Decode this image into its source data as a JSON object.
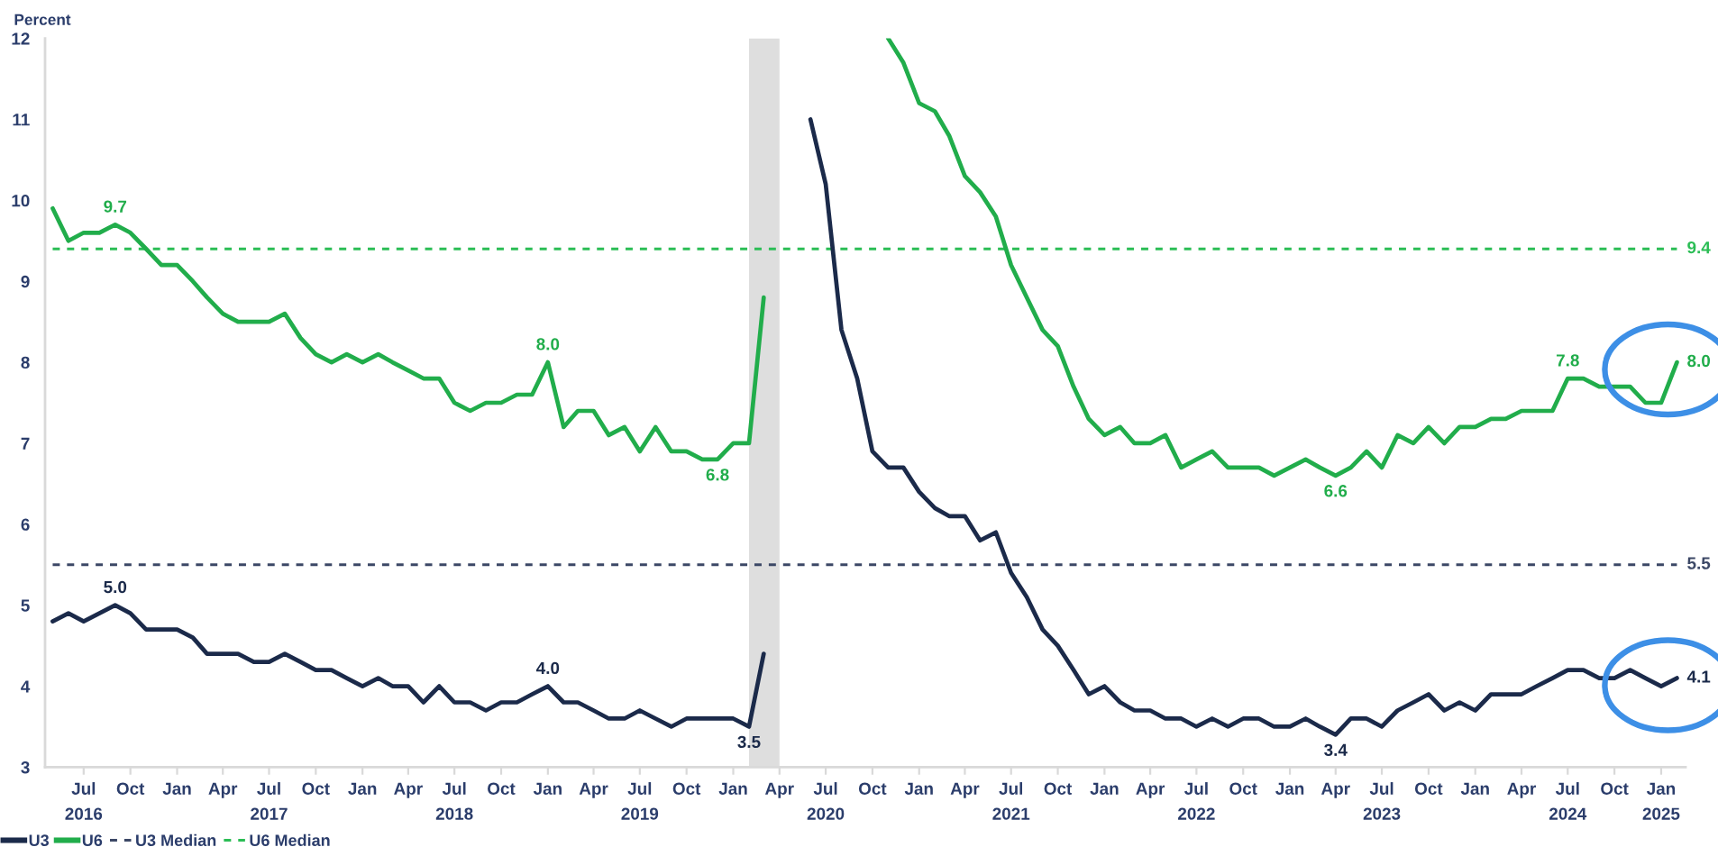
{
  "chart_data": {
    "type": "line",
    "ylabel": "Percent",
    "x": [
      "2016-05",
      "2016-06",
      "2016-07",
      "2016-08",
      "2016-09",
      "2016-10",
      "2016-11",
      "2016-12",
      "2017-01",
      "2017-02",
      "2017-03",
      "2017-04",
      "2017-05",
      "2017-06",
      "2017-07",
      "2017-08",
      "2017-09",
      "2017-10",
      "2017-11",
      "2017-12",
      "2018-01",
      "2018-02",
      "2018-03",
      "2018-04",
      "2018-05",
      "2018-06",
      "2018-07",
      "2018-08",
      "2018-09",
      "2018-10",
      "2018-11",
      "2018-12",
      "2019-01",
      "2019-02",
      "2019-03",
      "2019-04",
      "2019-05",
      "2019-06",
      "2019-07",
      "2019-08",
      "2019-09",
      "2019-10",
      "2019-11",
      "2019-12",
      "2020-01",
      "2020-02",
      "2020-03",
      "2020-04",
      "2020-05",
      "2020-06",
      "2020-07",
      "2020-08",
      "2020-09",
      "2020-10",
      "2020-11",
      "2020-12",
      "2021-01",
      "2021-02",
      "2021-03",
      "2021-04",
      "2021-05",
      "2021-06",
      "2021-07",
      "2021-08",
      "2021-09",
      "2021-10",
      "2021-11",
      "2021-12",
      "2022-01",
      "2022-02",
      "2022-03",
      "2022-04",
      "2022-05",
      "2022-06",
      "2022-07",
      "2022-08",
      "2022-09",
      "2022-10",
      "2022-11",
      "2022-12",
      "2023-01",
      "2023-02",
      "2023-03",
      "2023-04",
      "2023-05",
      "2023-06",
      "2023-07",
      "2023-08",
      "2023-09",
      "2023-10",
      "2023-11",
      "2023-12",
      "2024-01",
      "2024-02",
      "2024-03",
      "2024-04",
      "2024-05",
      "2024-06",
      "2024-07",
      "2024-08",
      "2024-09",
      "2024-10",
      "2024-11",
      "2024-12",
      "2025-01",
      "2025-02"
    ],
    "xlim": [
      "2016-04-16",
      "2025-02-18"
    ],
    "xticks": [
      {
        "value": "2016-07",
        "label": "Jul\n2016"
      },
      {
        "value": "2016-10",
        "label": "Oct"
      },
      {
        "value": "2017-01",
        "label": "Jan"
      },
      {
        "value": "2017-04",
        "label": "Apr"
      },
      {
        "value": "2017-07",
        "label": "Jul\n2017"
      },
      {
        "value": "2017-10",
        "label": "Oct"
      },
      {
        "value": "2018-01",
        "label": "Jan"
      },
      {
        "value": "2018-04",
        "label": "Apr"
      },
      {
        "value": "2018-07",
        "label": "Jul\n2018"
      },
      {
        "value": "2018-10",
        "label": "Oct"
      },
      {
        "value": "2019-01",
        "label": "Jan"
      },
      {
        "value": "2019-04",
        "label": "Apr"
      },
      {
        "value": "2019-07",
        "label": "Jul\n2019"
      },
      {
        "value": "2019-10",
        "label": "Oct"
      },
      {
        "value": "2020-01",
        "label": "Jan"
      },
      {
        "value": "2020-04",
        "label": "Apr"
      },
      {
        "value": "2020-07",
        "label": "Jul\n2020"
      },
      {
        "value": "2020-10",
        "label": "Oct"
      },
      {
        "value": "2021-01",
        "label": "Jan"
      },
      {
        "value": "2021-04",
        "label": "Apr"
      },
      {
        "value": "2021-07",
        "label": "Jul\n2021"
      },
      {
        "value": "2021-10",
        "label": "Oct"
      },
      {
        "value": "2022-01",
        "label": "Jan"
      },
      {
        "value": "2022-04",
        "label": "Apr"
      },
      {
        "value": "2022-07",
        "label": "Jul\n2022"
      },
      {
        "value": "2022-10",
        "label": "Oct"
      },
      {
        "value": "2023-01",
        "label": "Jan"
      },
      {
        "value": "2023-04",
        "label": "Apr"
      },
      {
        "value": "2023-07",
        "label": "Jul\n2023"
      },
      {
        "value": "2023-10",
        "label": "Oct"
      },
      {
        "value": "2024-01",
        "label": "Jan"
      },
      {
        "value": "2024-04",
        "label": "Apr"
      },
      {
        "value": "2024-07",
        "label": "Jul\n2024"
      },
      {
        "value": "2024-10",
        "label": "Oct"
      },
      {
        "value": "2025-01",
        "label": "Jan\n2025"
      }
    ],
    "ylim": [
      3,
      12
    ],
    "yticks": [
      3,
      4,
      5,
      6,
      7,
      8,
      9,
      10,
      11,
      12
    ],
    "grid": false,
    "legend": "bottom left",
    "bands": [
      {
        "axis": "x",
        "from": "2020-02",
        "to": "2020-04",
        "color": "#dedede"
      }
    ],
    "series": [
      {
        "name": "U3",
        "color": "#1b2a4a",
        "values": [
          4.8,
          4.9,
          4.8,
          4.9,
          5.0,
          4.9,
          4.7,
          4.7,
          4.7,
          4.6,
          4.4,
          4.4,
          4.4,
          4.3,
          4.3,
          4.4,
          4.3,
          4.2,
          4.2,
          4.1,
          4.0,
          4.1,
          4.0,
          4.0,
          3.8,
          4.0,
          3.8,
          3.8,
          3.7,
          3.8,
          3.8,
          3.9,
          4.0,
          3.8,
          3.8,
          3.7,
          3.6,
          3.6,
          3.7,
          3.6,
          3.5,
          3.6,
          3.6,
          3.6,
          3.6,
          3.5,
          4.4,
          null,
          null,
          11.0,
          10.2,
          8.4,
          7.8,
          6.9,
          6.7,
          6.7,
          6.4,
          6.2,
          6.1,
          6.1,
          5.8,
          5.9,
          5.4,
          5.1,
          4.7,
          4.5,
          4.2,
          3.9,
          4.0,
          3.8,
          3.7,
          3.7,
          3.6,
          3.6,
          3.5,
          3.6,
          3.5,
          3.6,
          3.6,
          3.5,
          3.5,
          3.6,
          3.5,
          3.4,
          3.6,
          3.6,
          3.5,
          3.7,
          3.8,
          3.9,
          3.7,
          3.8,
          3.7,
          3.9,
          3.9,
          3.9,
          4.0,
          4.1,
          4.2,
          4.2,
          4.1,
          4.1,
          4.2,
          4.1,
          4.0,
          4.1
        ],
        "value_labels": [
          null,
          null,
          null,
          null,
          "5.0",
          null,
          null,
          null,
          null,
          null,
          null,
          null,
          null,
          null,
          null,
          null,
          null,
          null,
          null,
          null,
          null,
          null,
          null,
          null,
          null,
          null,
          null,
          null,
          null,
          null,
          null,
          null,
          "4.0",
          null,
          null,
          null,
          null,
          null,
          null,
          null,
          null,
          null,
          null,
          null,
          null,
          "3.5",
          null,
          null,
          null,
          null,
          null,
          null,
          null,
          null,
          null,
          null,
          null,
          null,
          null,
          null,
          null,
          null,
          null,
          null,
          null,
          null,
          null,
          null,
          null,
          null,
          null,
          null,
          null,
          null,
          null,
          null,
          null,
          null,
          null,
          null,
          null,
          null,
          null,
          "3.4",
          null,
          null,
          null,
          null,
          null,
          null,
          null,
          null,
          null,
          null,
          null,
          null,
          null,
          null,
          null,
          null,
          null,
          null,
          null,
          null,
          null,
          "4.1"
        ]
      },
      {
        "name": "U6",
        "color": "#21ad4b",
        "values": [
          9.9,
          9.5,
          9.6,
          9.6,
          9.7,
          9.6,
          9.4,
          9.2,
          9.2,
          9.0,
          8.8,
          8.6,
          8.5,
          8.5,
          8.5,
          8.6,
          8.3,
          8.1,
          8.0,
          8.1,
          8.0,
          8.1,
          8.0,
          7.9,
          7.8,
          7.8,
          7.5,
          7.4,
          7.5,
          7.5,
          7.6,
          7.6,
          8.0,
          7.2,
          7.4,
          7.4,
          7.1,
          7.2,
          6.9,
          7.2,
          6.9,
          6.9,
          6.8,
          6.8,
          7.0,
          7.0,
          8.8,
          null,
          null,
          null,
          null,
          null,
          null,
          null,
          12.0,
          11.7,
          11.2,
          11.1,
          10.8,
          10.3,
          10.1,
          9.8,
          9.2,
          8.8,
          8.4,
          8.2,
          7.7,
          7.3,
          7.1,
          7.2,
          7.0,
          7.0,
          7.1,
          6.7,
          6.8,
          6.9,
          6.7,
          6.7,
          6.7,
          6.6,
          6.7,
          6.8,
          6.7,
          6.6,
          6.7,
          6.9,
          6.7,
          7.1,
          7.0,
          7.2,
          7.0,
          7.2,
          7.2,
          7.3,
          7.3,
          7.4,
          7.4,
          7.4,
          7.8,
          7.8,
          7.7,
          7.7,
          7.7,
          7.5,
          7.5,
          8.0
        ],
        "value_labels": [
          null,
          null,
          null,
          null,
          "9.7",
          null,
          null,
          null,
          null,
          null,
          null,
          null,
          null,
          null,
          null,
          null,
          null,
          null,
          null,
          null,
          null,
          null,
          null,
          null,
          null,
          null,
          null,
          null,
          null,
          null,
          null,
          null,
          "8.0",
          null,
          null,
          null,
          null,
          null,
          null,
          null,
          null,
          null,
          null,
          "6.8",
          null,
          null,
          null,
          null,
          null,
          null,
          null,
          null,
          null,
          null,
          null,
          null,
          null,
          null,
          null,
          null,
          null,
          null,
          null,
          null,
          null,
          null,
          null,
          null,
          null,
          null,
          null,
          null,
          null,
          null,
          null,
          null,
          null,
          null,
          null,
          null,
          null,
          null,
          null,
          "6.6",
          null,
          null,
          null,
          null,
          null,
          null,
          null,
          null,
          null,
          null,
          null,
          null,
          null,
          null,
          "7.8",
          null,
          null,
          null,
          null,
          null,
          null,
          "8.0"
        ]
      },
      {
        "name": "U3 Median",
        "type": "line",
        "line_style": "dashed",
        "color": "#3c4866",
        "x": [
          "2016-05",
          "2025-02"
        ],
        "values": [
          5.5,
          5.5
        ],
        "value_labels": [
          null,
          "5.5"
        ]
      },
      {
        "name": "U6 Median",
        "type": "line",
        "line_style": "dashed",
        "color": "#2bbd55",
        "x": [
          "2016-05",
          "2025-02"
        ],
        "values": [
          9.4,
          9.4
        ],
        "value_labels": [
          null,
          "9.4"
        ]
      }
    ]
  }
}
